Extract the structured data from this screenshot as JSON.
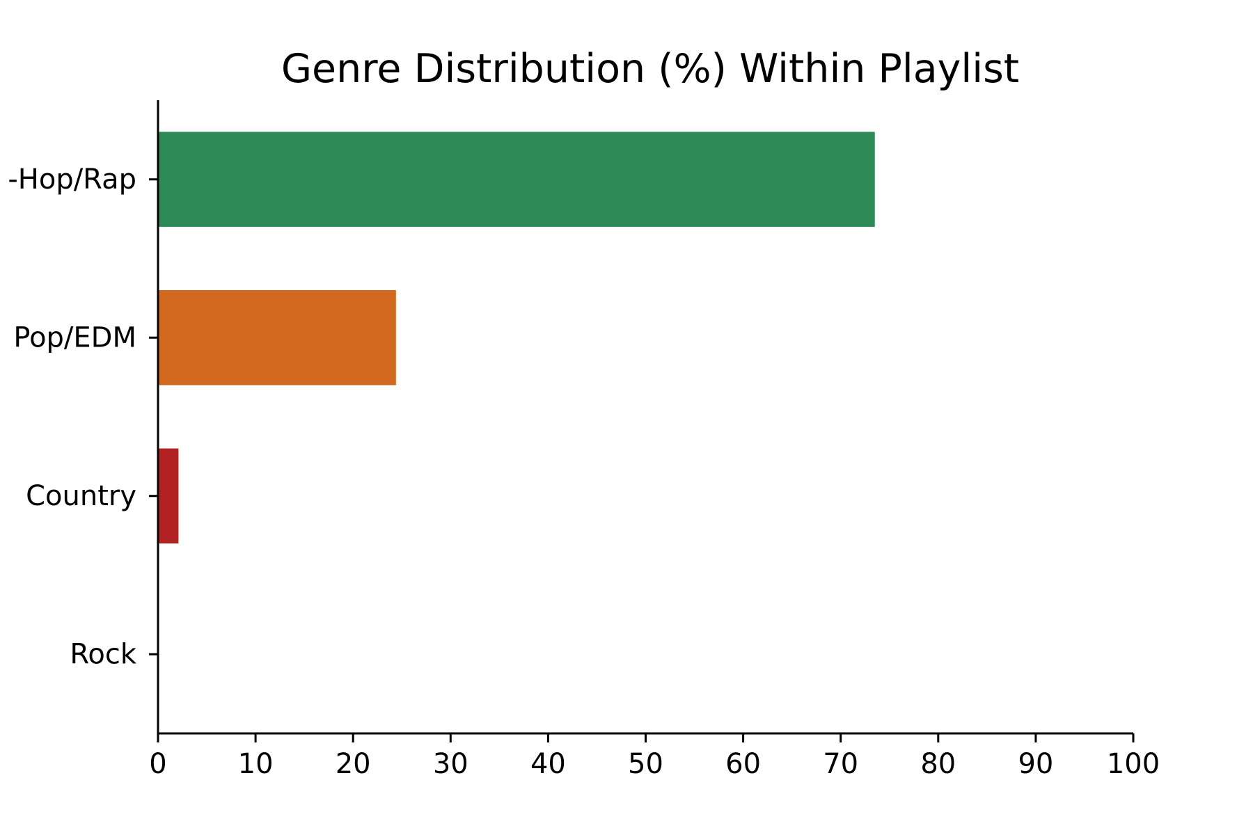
{
  "chart_data": {
    "type": "bar",
    "orientation": "horizontal",
    "title": "Genre Distribution (%) Within Playlist",
    "xlabel": "",
    "ylabel": "",
    "xlim": [
      0,
      100
    ],
    "x_ticks": [
      0,
      10,
      20,
      30,
      40,
      50,
      60,
      70,
      80,
      90,
      100
    ],
    "categories": [
      "-Hop/Rap",
      "Pop/EDM",
      "Country",
      "Rock"
    ],
    "values": [
      73.5,
      24.4,
      2.1,
      0
    ],
    "colors": [
      "#2e8b57",
      "#d2691e",
      "#b22222",
      "#808080"
    ],
    "grid": false,
    "legend": "none"
  }
}
